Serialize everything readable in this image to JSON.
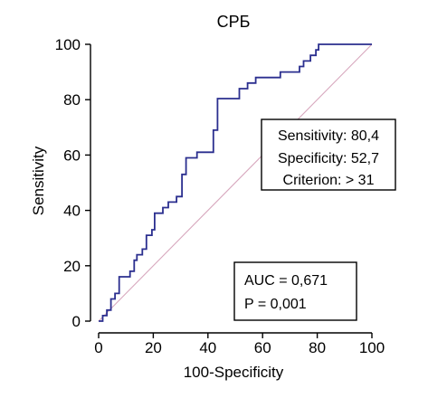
{
  "chart_data": {
    "type": "line",
    "title": "СРБ",
    "xlabel": "100-Specificity",
    "ylabel": "Sensitivity",
    "xlim": [
      0,
      100
    ],
    "ylim": [
      0,
      100
    ],
    "x_ticks": [
      "0",
      "20",
      "40",
      "60",
      "80",
      "100"
    ],
    "y_ticks": [
      "0",
      "20",
      "40",
      "60",
      "80",
      "100"
    ],
    "grid": false,
    "series": [
      {
        "color": "#2b2f8f",
        "x": [
          0,
          1.5,
          1.5,
          3,
          3,
          4.5,
          4.5,
          6,
          6,
          7.5,
          7.5,
          11.5,
          11.5,
          13,
          13,
          14,
          14,
          16,
          16,
          17.5,
          17.5,
          19.5,
          19.5,
          20.5,
          20.5,
          23.5,
          23.5,
          25.5,
          25.5,
          28.5,
          28.5,
          30.5,
          30.5,
          32,
          32,
          36,
          36,
          42,
          42,
          43.5,
          43.5,
          44.5,
          44.5,
          51.5,
          51.5,
          54.5,
          54.5,
          57.5,
          57.5,
          66.5,
          66.5,
          73.5,
          73.5,
          75,
          75,
          77.5,
          77.5,
          79.5,
          79.5,
          80.5,
          80.5,
          83.5,
          83.5,
          100
        ],
        "y": [
          0,
          0,
          2,
          2,
          4,
          4,
          8,
          8,
          10,
          10,
          16,
          16,
          18,
          18,
          22,
          22,
          24,
          24,
          26,
          26,
          31,
          31,
          33,
          33,
          39,
          39,
          41,
          41,
          43,
          43,
          45,
          45,
          53,
          53,
          59,
          59,
          61,
          61,
          69,
          69,
          80.4,
          80.4,
          80.4,
          80.4,
          84,
          84,
          86,
          86,
          88,
          88,
          90,
          90,
          92,
          92,
          94,
          94,
          96,
          96,
          98,
          98,
          100,
          100,
          100,
          100
        ]
      },
      {
        "color": "#d7a7bd",
        "x": [
          0,
          100
        ],
        "y": [
          0,
          100
        ]
      }
    ],
    "annotations": {
      "criterion_box": {
        "sensitivity": "Sensitivity: 80,4",
        "specificity": "Specificity: 52,7",
        "criterion": "Criterion: > 31"
      },
      "auc_box": {
        "auc": "AUC = 0,671",
        "p": "P = 0,001"
      }
    }
  }
}
